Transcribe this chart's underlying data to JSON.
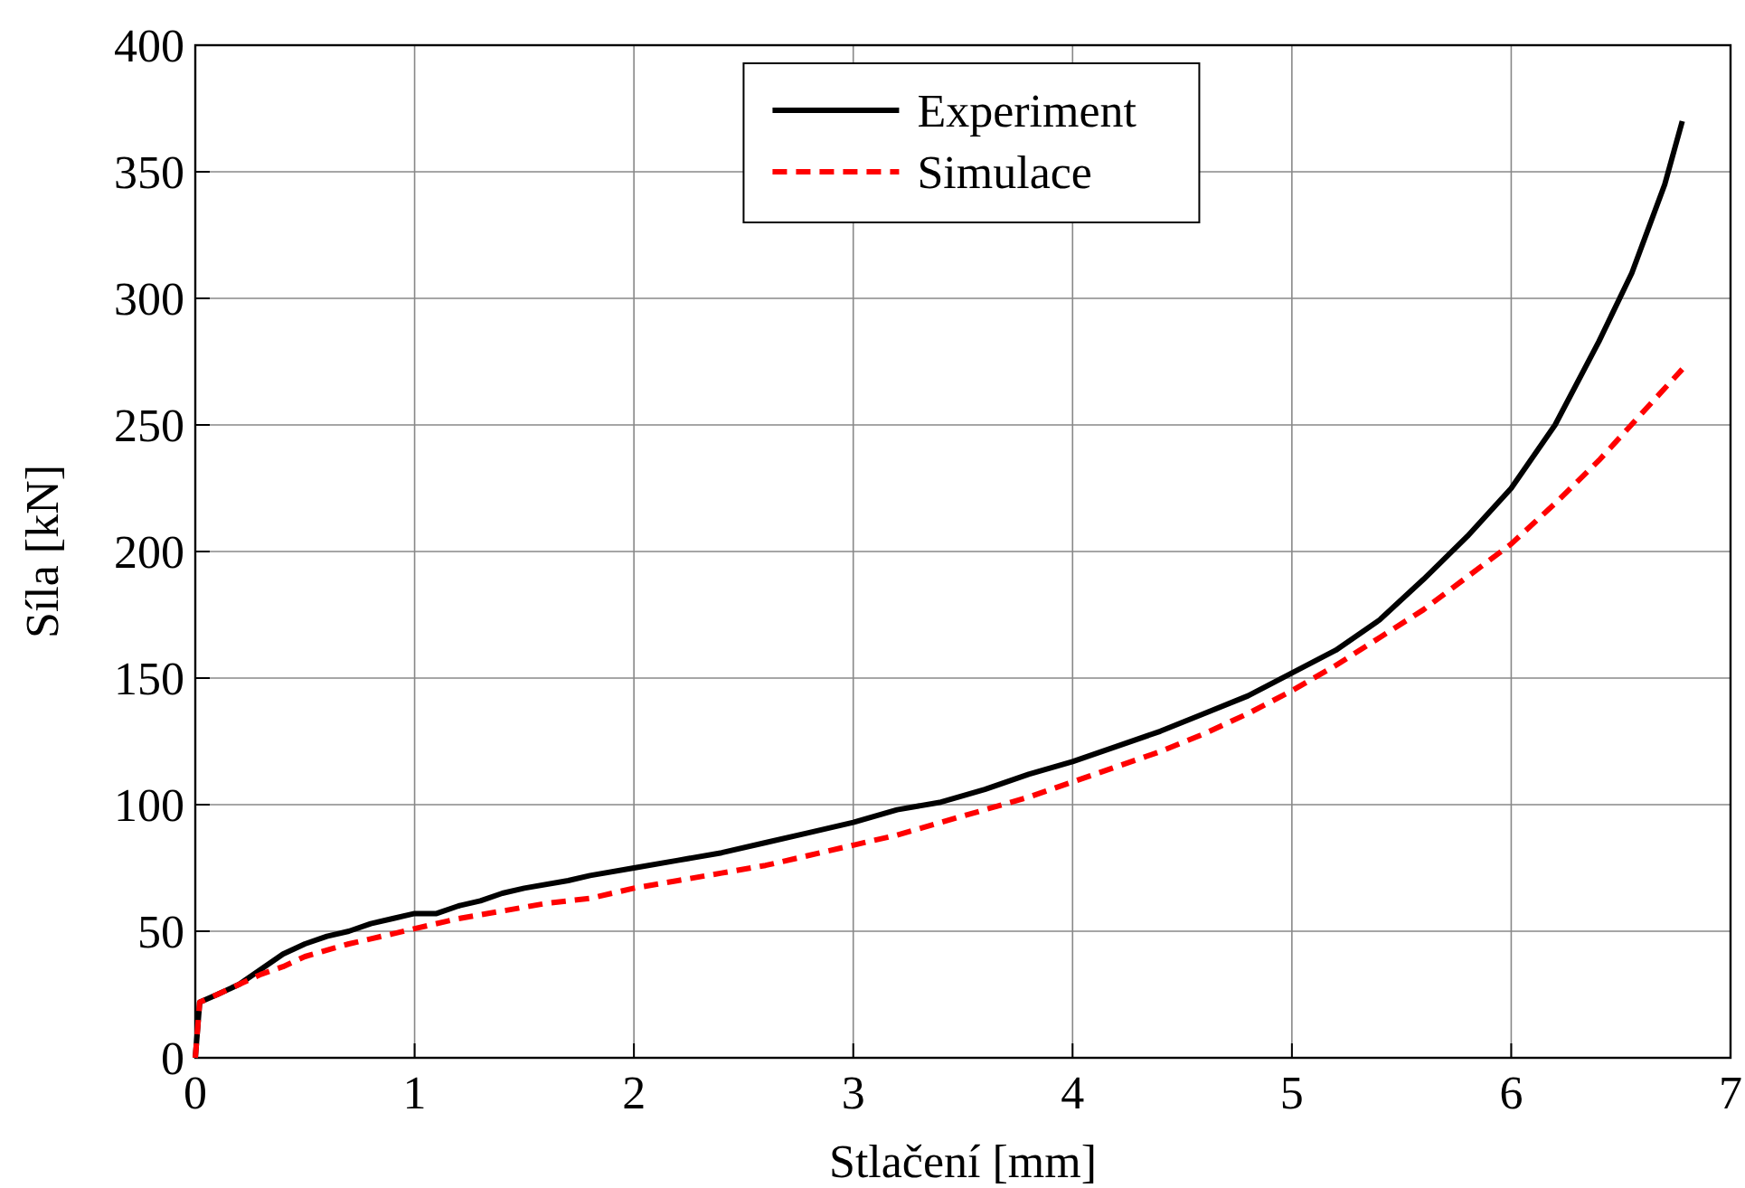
{
  "chart_data": {
    "type": "line",
    "xlabel": "Stlačení [mm]",
    "ylabel": "Síla [kN]",
    "xlim": [
      0,
      7
    ],
    "xticks": [
      0,
      1,
      2,
      3,
      4,
      5,
      6,
      7
    ],
    "ylim": [
      0,
      400
    ],
    "yticks": [
      0,
      50,
      100,
      150,
      200,
      250,
      300,
      350,
      400
    ],
    "grid": true,
    "legend": "top",
    "series": [
      {
        "name": "Experiment",
        "color": "#000000",
        "line_style": "solid",
        "x": [
          0,
          0.02,
          0.1,
          0.2,
          0.3,
          0.4,
          0.5,
          0.6,
          0.7,
          0.8,
          0.9,
          1.0,
          1.1,
          1.2,
          1.3,
          1.4,
          1.5,
          1.7,
          1.8,
          2.0,
          2.2,
          2.4,
          2.6,
          2.8,
          3.0,
          3.2,
          3.4,
          3.6,
          3.8,
          4.0,
          4.2,
          4.4,
          4.6,
          4.8,
          5.0,
          5.2,
          5.4,
          5.6,
          5.8,
          6.0,
          6.2,
          6.4,
          6.55,
          6.7,
          6.78
        ],
        "values": [
          0,
          22,
          25,
          29,
          35,
          41,
          45,
          48,
          50,
          53,
          55,
          57,
          57,
          60,
          62,
          65,
          67,
          70,
          72,
          75,
          78,
          81,
          85,
          89,
          93,
          98,
          101,
          106,
          112,
          117,
          123,
          129,
          136,
          143,
          152,
          161,
          173,
          189,
          206,
          225,
          250,
          283,
          310,
          345,
          370
        ]
      },
      {
        "name": "Simulace",
        "color": "#ff0000",
        "line_style": "dashed",
        "x": [
          0,
          0.02,
          0.1,
          0.2,
          0.3,
          0.4,
          0.5,
          0.7,
          0.9,
          1.0,
          1.2,
          1.4,
          1.6,
          1.8,
          2.0,
          2.2,
          2.4,
          2.6,
          2.8,
          3.0,
          3.2,
          3.4,
          3.6,
          3.8,
          4.0,
          4.2,
          4.4,
          4.6,
          4.8,
          5.0,
          5.2,
          5.4,
          5.6,
          5.8,
          6.0,
          6.2,
          6.4,
          6.6,
          6.78
        ],
        "values": [
          0,
          22,
          25,
          29,
          33,
          36,
          40,
          45,
          49,
          51,
          55,
          58,
          61,
          63,
          67,
          70,
          73,
          76,
          80,
          84,
          88,
          93,
          98,
          103,
          109,
          115,
          121,
          128,
          136,
          145,
          155,
          166,
          177,
          190,
          203,
          219,
          236,
          255,
          272
        ]
      }
    ]
  }
}
